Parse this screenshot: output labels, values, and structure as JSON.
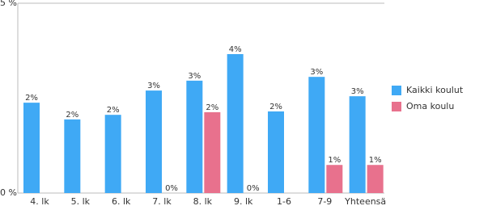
{
  "chart_data": {
    "type": "bar",
    "categories": [
      "4. lk",
      "5. lk",
      "6. lk",
      "7. lk",
      "8. lk",
      "9. lk",
      "1-6",
      "7-9",
      "Yhteensä"
    ],
    "series": [
      {
        "name": "Kaikki koulut",
        "color": "#3fa9f5",
        "values": [
          2.38,
          1.94,
          2.06,
          2.7,
          2.96,
          3.66,
          2.15,
          3.06,
          2.55
        ],
        "value_labels": [
          "2%",
          "2%",
          "2%",
          "3%",
          "3%",
          "4%",
          "2%",
          "3%",
          "3%"
        ]
      },
      {
        "name": "Oma koulu",
        "color": "#e8718d",
        "values": [
          null,
          null,
          null,
          0,
          2.13,
          0,
          null,
          0.74,
          0.74
        ],
        "value_labels": [
          null,
          null,
          null,
          "0%",
          "2%",
          "0%",
          null,
          "1%",
          "1%"
        ]
      }
    ],
    "ylim": [
      0,
      5
    ],
    "yticks": [
      {
        "value": 0,
        "label": "0 %"
      },
      {
        "value": 5,
        "label": "5 %"
      }
    ],
    "grid": true,
    "legend": "right"
  }
}
